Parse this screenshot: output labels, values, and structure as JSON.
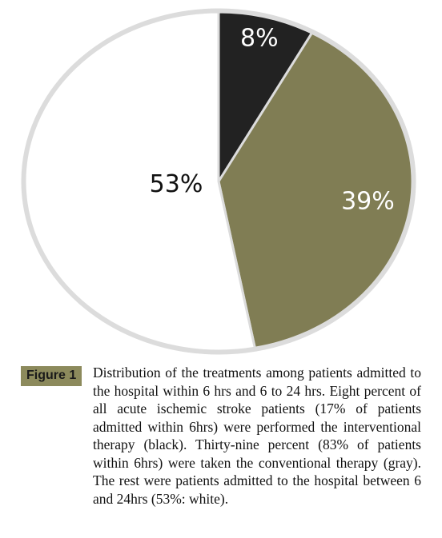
{
  "chart_data": {
    "type": "pie",
    "slices": [
      {
        "label": "8%",
        "value": 8,
        "color": "#222222",
        "text_color": "#ffffff"
      },
      {
        "label": "39%",
        "value": 39,
        "color": "#807d54",
        "text_color": "#ffffff"
      },
      {
        "label": "53%",
        "value": 53,
        "color": "#ffffff",
        "text_color": "#111111"
      }
    ],
    "start_angle_deg": 0,
    "direction": "clockwise",
    "outline_color": "#dcdcdc"
  },
  "figure": {
    "label": "Figure 1",
    "caption": "Distribution of the treatments among patients admitted to the hospital within 6 hrs and 6 to 24 hrs. Eight percent of all acute ischemic stroke patients (17% of patients admitted within 6hrs) were performed the interventional therapy (black). Thirty-nine percent (83% of patients within 6hrs) were taken the conventional therapy (gray). The rest were patients admitted to the hospital between 6 and 24hrs (53%: white)."
  }
}
